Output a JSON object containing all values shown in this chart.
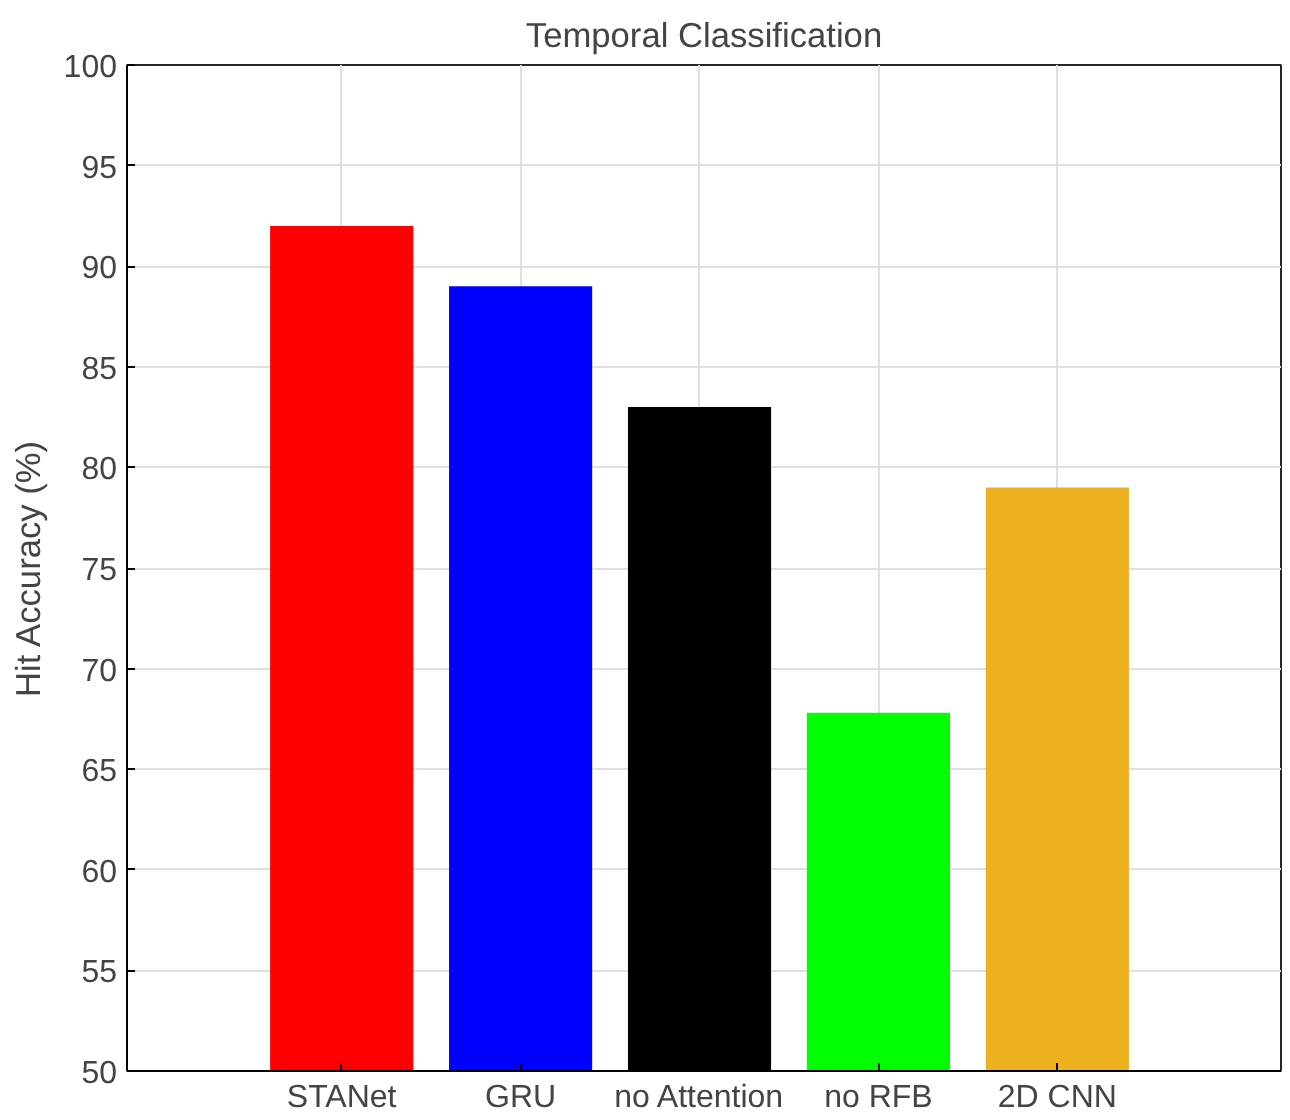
{
  "chart_data": {
    "type": "bar",
    "title": "Temporal Classification",
    "ylabel": "Hit Accuracy (%)",
    "categories": [
      "STANet",
      "GRU",
      "no Attention",
      "no RFB",
      "2D CNN"
    ],
    "values": [
      92,
      89,
      83,
      67.8,
      79
    ],
    "colors": [
      "#ff0000",
      "#0000ff",
      "#000000",
      "#00ff00",
      "#edb120"
    ],
    "ylim": [
      50,
      100
    ],
    "yticks": [
      50,
      55,
      60,
      65,
      70,
      75,
      80,
      85,
      90,
      95,
      100
    ],
    "grid": true
  }
}
